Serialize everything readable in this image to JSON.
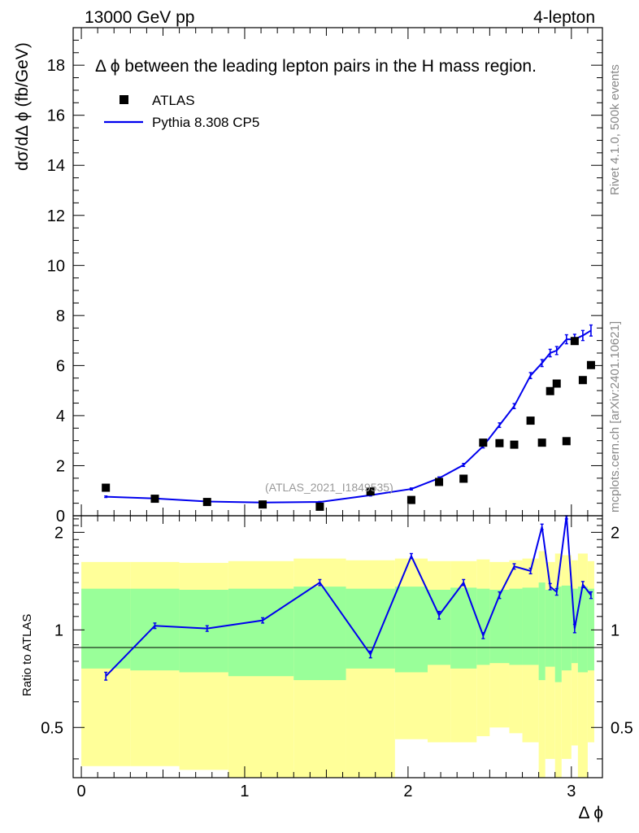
{
  "header": {
    "left": "13000 GeV pp",
    "right": "4-lepton"
  },
  "side_labels": {
    "rivet": "Rivet 4.1.0,  500k events",
    "mcplots": "mcplots.cern.ch [arXiv:2401.10621]"
  },
  "chart_data": {
    "type": "scatter",
    "title": "Δ ϕ between the leading lepton pairs in the H mass region.",
    "watermark": "(ATLAS_2021_I1849535)",
    "xlabel": "Δ ϕ",
    "ylabel": "dσ/dΔ ϕ (fb/GeV)",
    "ratio_ylabel": "Ratio to ATLAS",
    "xlim": [
      -0.05,
      3.19
    ],
    "ylim": [
      0,
      19.5
    ],
    "ratio_ylim": [
      0.35,
      2.25
    ],
    "x_ticks": [
      0,
      1,
      2,
      3
    ],
    "x_tick_labels": [
      "0",
      "1",
      "2",
      "3"
    ],
    "y_ticks": [
      0,
      2,
      4,
      6,
      8,
      10,
      12,
      14,
      16,
      18
    ],
    "y_tick_labels": [
      "0",
      "2",
      "4",
      "6",
      "8",
      "10",
      "12",
      "14",
      "16",
      "18"
    ],
    "ratio_ticks": [
      0.5,
      1,
      2
    ],
    "ratio_tick_labels": [
      "0.5",
      "1",
      "2"
    ],
    "legend": {
      "position": "top-left",
      "entries": [
        {
          "label": "ATLAS",
          "marker": "square",
          "color": "#000000"
        },
        {
          "label": "Pythia 8.308 CP5",
          "marker": "line",
          "color": "#0000ee"
        }
      ]
    },
    "data_points": {
      "name": "ATLAS",
      "x": [
        0.15,
        0.45,
        0.77,
        1.11,
        1.46,
        1.77,
        2.02,
        2.19,
        2.34,
        2.46,
        2.56,
        2.65,
        2.75,
        2.82,
        2.87,
        2.91,
        2.97,
        3.02,
        3.07,
        3.12
      ],
      "y": [
        1.12,
        0.68,
        0.55,
        0.45,
        0.36,
        0.97,
        0.63,
        1.35,
        1.48,
        2.92,
        2.9,
        2.84,
        3.8,
        2.92,
        4.98,
        5.28,
        2.98,
        6.98,
        5.42,
        6.02
      ]
    },
    "mc_curve": {
      "name": "Pythia 8.308 CP5",
      "color": "#0000ee",
      "x": [
        0.15,
        0.45,
        0.77,
        1.11,
        1.46,
        1.77,
        2.02,
        2.19,
        2.34,
        2.46,
        2.56,
        2.65,
        2.75,
        2.82,
        2.87,
        2.91,
        2.97,
        3.02,
        3.07,
        3.12
      ],
      "y": [
        0.76,
        0.69,
        0.57,
        0.53,
        0.55,
        0.82,
        1.07,
        1.5,
        2.03,
        2.78,
        3.62,
        4.38,
        5.6,
        6.1,
        6.5,
        6.6,
        7.05,
        7.05,
        7.2,
        7.4
      ],
      "err": [
        0.03,
        0.03,
        0.02,
        0.02,
        0.02,
        0.03,
        0.04,
        0.05,
        0.06,
        0.07,
        0.09,
        0.1,
        0.12,
        0.14,
        0.15,
        0.16,
        0.18,
        0.2,
        0.2,
        0.22
      ]
    },
    "ratio_curve": {
      "x": [
        0.15,
        0.45,
        0.77,
        1.11,
        1.46,
        1.77,
        2.02,
        2.19,
        2.34,
        2.46,
        2.56,
        2.65,
        2.75,
        2.82,
        2.87,
        2.91,
        2.97,
        3.02,
        3.07,
        3.12
      ],
      "y": [
        0.72,
        1.03,
        1.01,
        1.07,
        1.4,
        0.84,
        1.69,
        1.11,
        1.4,
        0.96,
        1.28,
        1.57,
        1.52,
        2.08,
        1.36,
        1.31,
        2.25,
        1.01,
        1.38,
        1.28
      ],
      "err": [
        0.02,
        0.02,
        0.02,
        0.02,
        0.03,
        0.02,
        0.03,
        0.03,
        0.03,
        0.02,
        0.03,
        0.03,
        0.03,
        0.04,
        0.03,
        0.03,
        0.05,
        0.03,
        0.03,
        0.03
      ]
    },
    "bands": {
      "edges": [
        0.0,
        0.3,
        0.6,
        0.9,
        1.3,
        1.62,
        1.92,
        2.12,
        2.26,
        2.42,
        2.5,
        2.62,
        2.7,
        2.8,
        2.84,
        2.9,
        2.94,
        3.0,
        3.04,
        3.1,
        3.14
      ],
      "green_lo": [
        0.76,
        0.75,
        0.74,
        0.72,
        0.7,
        0.76,
        0.74,
        0.78,
        0.76,
        0.78,
        0.79,
        0.78,
        0.78,
        0.7,
        0.77,
        0.69,
        0.75,
        0.79,
        0.74,
        0.75
      ],
      "green_hi": [
        1.34,
        1.34,
        1.33,
        1.34,
        1.36,
        1.34,
        1.36,
        1.33,
        1.35,
        1.34,
        1.33,
        1.34,
        1.35,
        1.4,
        1.33,
        1.36,
        1.37,
        1.34,
        1.36,
        1.34
      ],
      "yellow_lo": [
        0.38,
        0.38,
        0.37,
        0.35,
        0.35,
        0.35,
        0.46,
        0.45,
        0.45,
        0.47,
        0.5,
        0.48,
        0.45,
        0.35,
        0.4,
        0.35,
        0.4,
        0.44,
        0.35,
        0.45
      ],
      "yellow_hi": [
        1.62,
        1.62,
        1.61,
        1.63,
        1.66,
        1.64,
        1.66,
        1.63,
        1.63,
        1.65,
        1.62,
        1.64,
        1.66,
        1.75,
        1.62,
        1.72,
        1.7,
        1.64,
        1.72,
        1.63
      ]
    },
    "colors": {
      "green_band": "#99ff99",
      "yellow_band": "#ffff99",
      "mc_line": "#0000ee",
      "data_marker": "#000000",
      "watermark": "#999999",
      "side_text": "#888888"
    }
  }
}
